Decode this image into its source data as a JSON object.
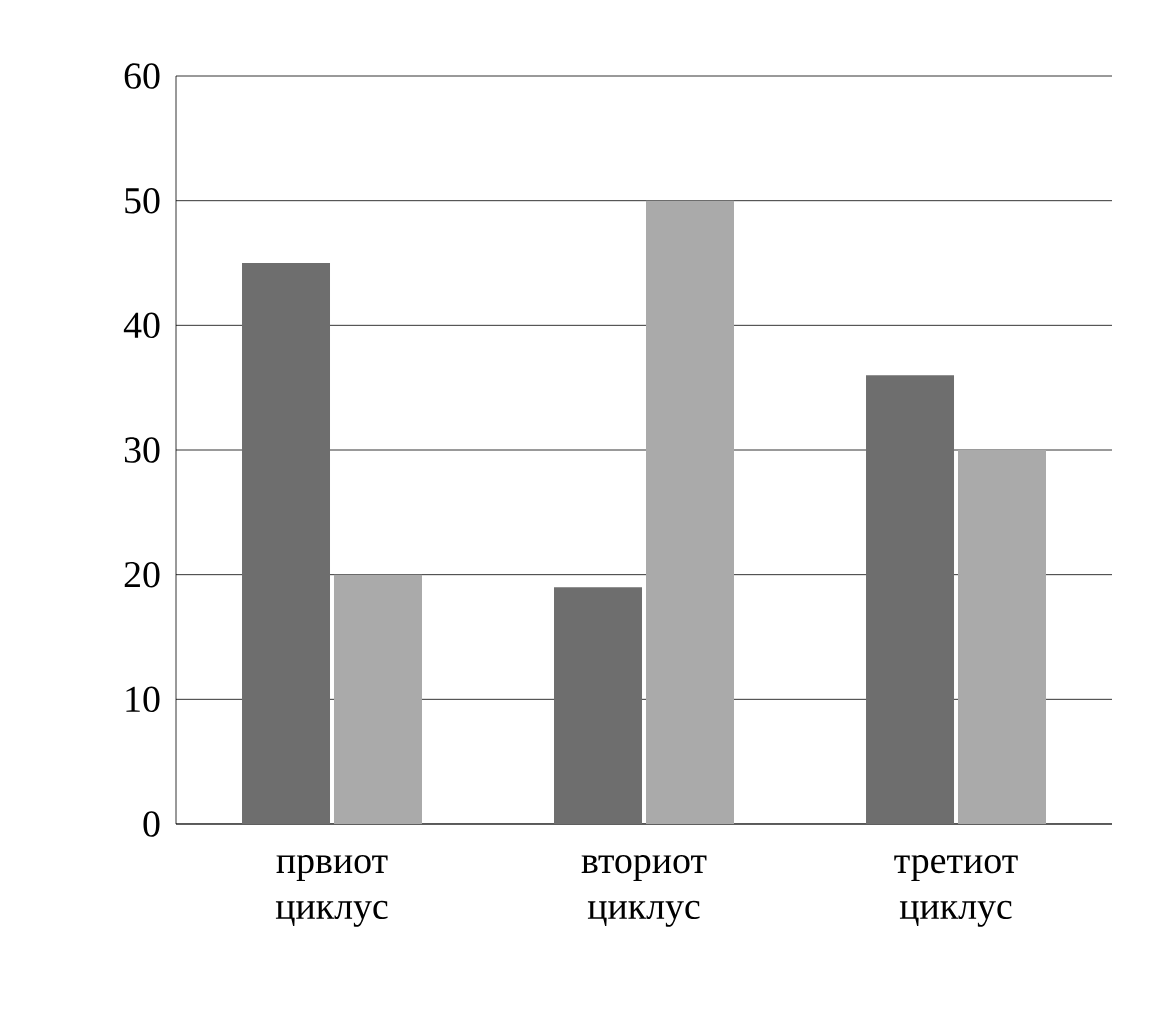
{
  "chart_data": {
    "type": "bar",
    "categories": [
      "првиот циклус",
      "вториот циклус",
      "третиот циклус"
    ],
    "series": [
      {
        "color": "#6e6e6e",
        "values": [
          45,
          19,
          36
        ]
      },
      {
        "color": "#aaaaaa",
        "values": [
          20,
          50,
          30
        ]
      }
    ],
    "ylim": [
      0,
      60
    ],
    "yticks": [
      0,
      10,
      20,
      30,
      40,
      50,
      60
    ],
    "grid": "y"
  }
}
